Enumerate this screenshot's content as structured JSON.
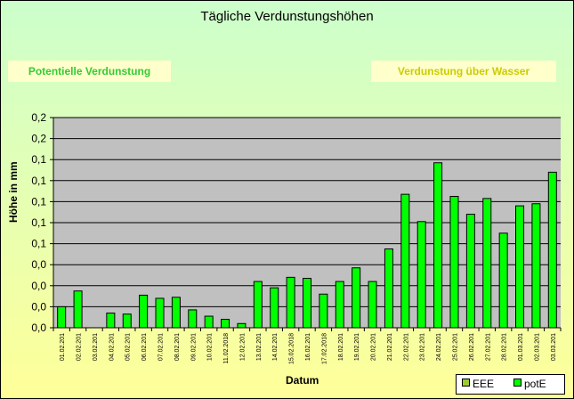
{
  "chart_data": {
    "type": "bar",
    "title": "Tägliche Verdunstungshöhen",
    "xlabel": "Datum",
    "ylabel": "Höhe in mm",
    "ylim": [
      0,
      0.2
    ],
    "ytick_values": [
      0,
      0.02,
      0.04,
      0.06,
      0.08,
      0.1,
      0.12,
      0.14,
      0.16,
      0.18,
      0.2
    ],
    "ytick_labels": [
      "0,0",
      "0,0",
      "0,0",
      "0,0",
      "0,1",
      "0,1",
      "0,1",
      "0,1",
      "0,1",
      "0,2",
      "0,2"
    ],
    "grid": true,
    "legend_position": "bottom-right",
    "categories": [
      "01.02.201",
      "02.02.201",
      "03.02.201",
      "04.02.201",
      "05.02.201",
      "06.02.201",
      "07.02.201",
      "08.02.201",
      "09.02.201",
      "10.02.201",
      "11.02.2018",
      "12.02.201",
      "13.02.201",
      "14.02.201",
      "15.02.2018",
      "16.02.201",
      "17.02.2018",
      "18.02.201",
      "19.02.201",
      "20.02.201",
      "21.02.201",
      "22.02.201",
      "23.02.201",
      "24.02.201",
      "25.02.201",
      "26.02.201",
      "27.02.201",
      "28.02.201",
      "01.03.201",
      "02.03.201",
      "03.03.201"
    ],
    "series": [
      {
        "name": "EEE",
        "values": [
          0,
          0,
          0,
          0,
          0,
          0,
          0,
          0,
          0,
          0,
          0,
          0,
          0,
          0,
          0,
          0,
          0,
          0,
          0,
          0,
          0,
          0,
          0,
          0,
          0,
          0,
          0,
          0,
          0,
          0,
          0
        ],
        "color": "#99cc33"
      },
      {
        "name": "potE",
        "values": [
          0.02,
          0.035,
          0,
          0.014,
          0.013,
          0.031,
          0.028,
          0.029,
          0.017,
          0.011,
          0.008,
          0.004,
          0.044,
          0.038,
          0.048,
          0.047,
          0.032,
          0.044,
          0.057,
          0.044,
          0.075,
          0.127,
          0.101,
          0.157,
          0.125,
          0.108,
          0.123,
          0.09,
          0.116,
          0.118,
          0.148
        ],
        "color": "#00ff00"
      }
    ],
    "colors": {
      "plot_bg": "#c0c0c0",
      "bar": "#00ff00",
      "bar_border": "#000000"
    }
  },
  "boxes": {
    "left_label": "Potentielle Verdunstung",
    "right_label": "Verdunstung über Wasser"
  }
}
